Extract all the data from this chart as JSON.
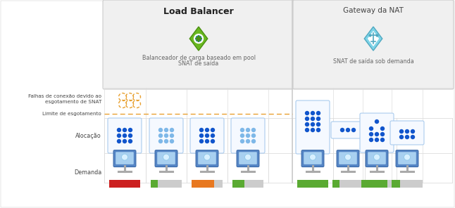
{
  "bg_color": "#eeeeee",
  "white": "#ffffff",
  "panel_bg": "#f0f0f0",
  "lb_title": "Load Balancer",
  "nat_title": "Gateway da NAT",
  "lb_subtitle1": "Balanceador de carga baseado em pool",
  "lb_subtitle2": "SNAT de saída",
  "nat_subtitle": "SNAT de saída sob demanda",
  "label_falhas": "Falhas de conexão devido ao\nesgotamento de SNAT",
  "label_limite": "Limite de esgotamento",
  "label_alocacao": "Alocação",
  "label_demanda": "Demanda",
  "dot_dark": "#1155cc",
  "dot_light": "#7eb8e8",
  "dot_dashed": "#e8a030",
  "green": "#5aaa32",
  "orange": "#e87820",
  "red": "#cc2020",
  "gray": "#cccccc",
  "orange_dashed": "#e8a030",
  "cell_border": "#aaccee",
  "grid_line": "#dddddd",
  "sep_line": "#cccccc"
}
